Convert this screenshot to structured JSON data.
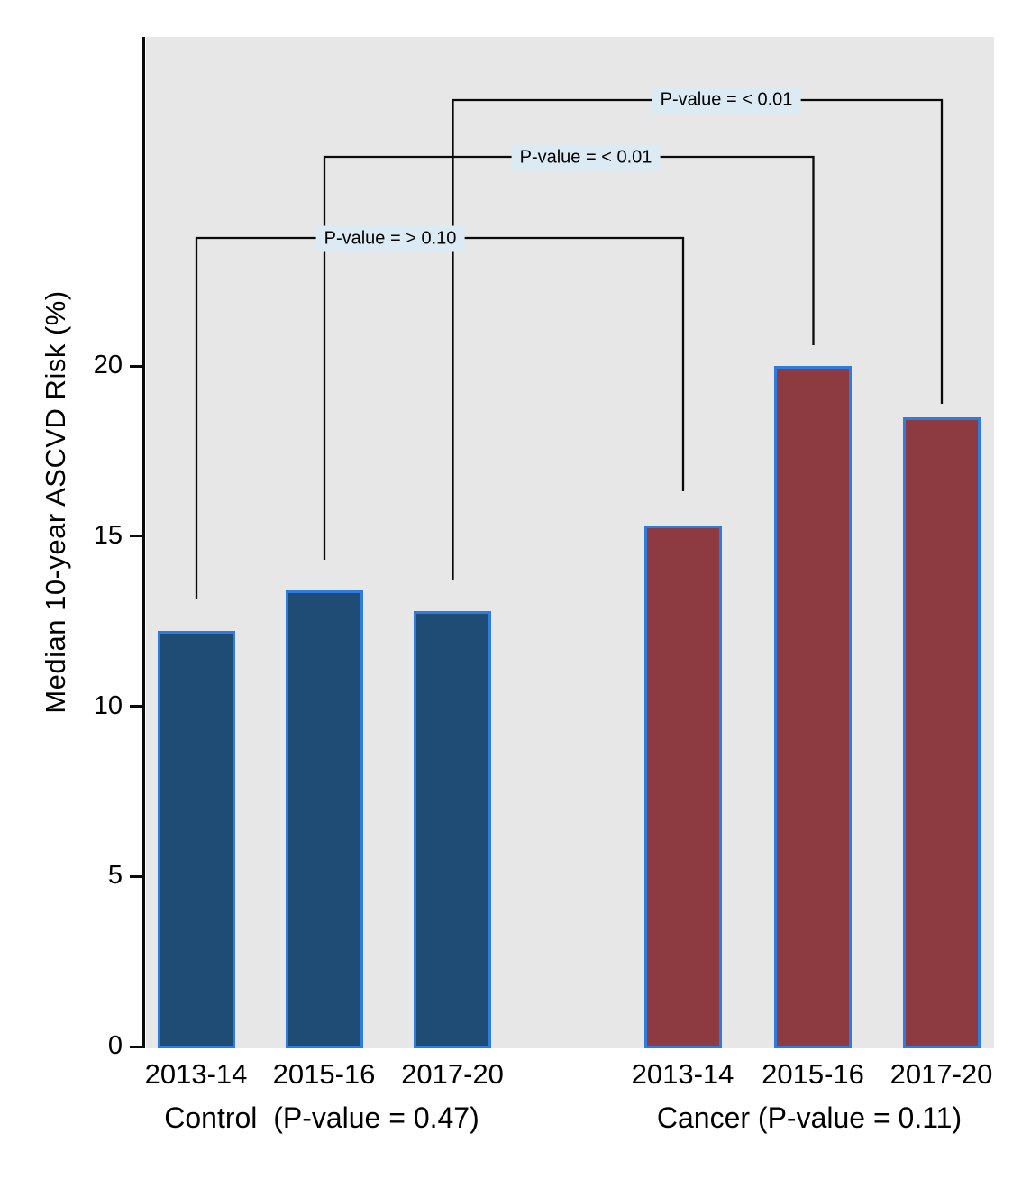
{
  "chart_data": {
    "type": "bar",
    "title": "",
    "xlabel": "",
    "ylabel": "Median 10-year ASCVD Risk (%)",
    "categories": [
      "2013-14",
      "2015-16",
      "2017-20"
    ],
    "series": [
      {
        "name": "Control",
        "values": [
          12.2,
          13.4,
          12.8
        ],
        "color": "#1e4c75"
      },
      {
        "name": "Cancer",
        "values": [
          15.3,
          20.0,
          18.5
        ],
        "color": "#8e3a41"
      }
    ],
    "x_tick_labels": [
      "2013-14",
      "2015-16",
      "2017-20",
      "2013-14",
      "2015-16",
      "2017-20"
    ],
    "y_tick_labels": [
      "0",
      "5",
      "10",
      "15",
      "20"
    ],
    "y_ticks": [
      0,
      5,
      10,
      15,
      20
    ],
    "ylim": [
      0,
      30
    ],
    "grid": "off",
    "legend": "none",
    "group_labels": [
      "Control  (P-value = 0.47)",
      "Cancer (P-value = 0.11)"
    ],
    "annotations": [
      "P-value = > 0.10",
      "P-value = < 0.01",
      "P-value = < 0.01"
    ],
    "bar_border_color": "#2e7ce0",
    "plot_bg": "#e7e7e7",
    "annotation_bg": "#dcebf3",
    "axis_color": "#0a0a0a"
  }
}
